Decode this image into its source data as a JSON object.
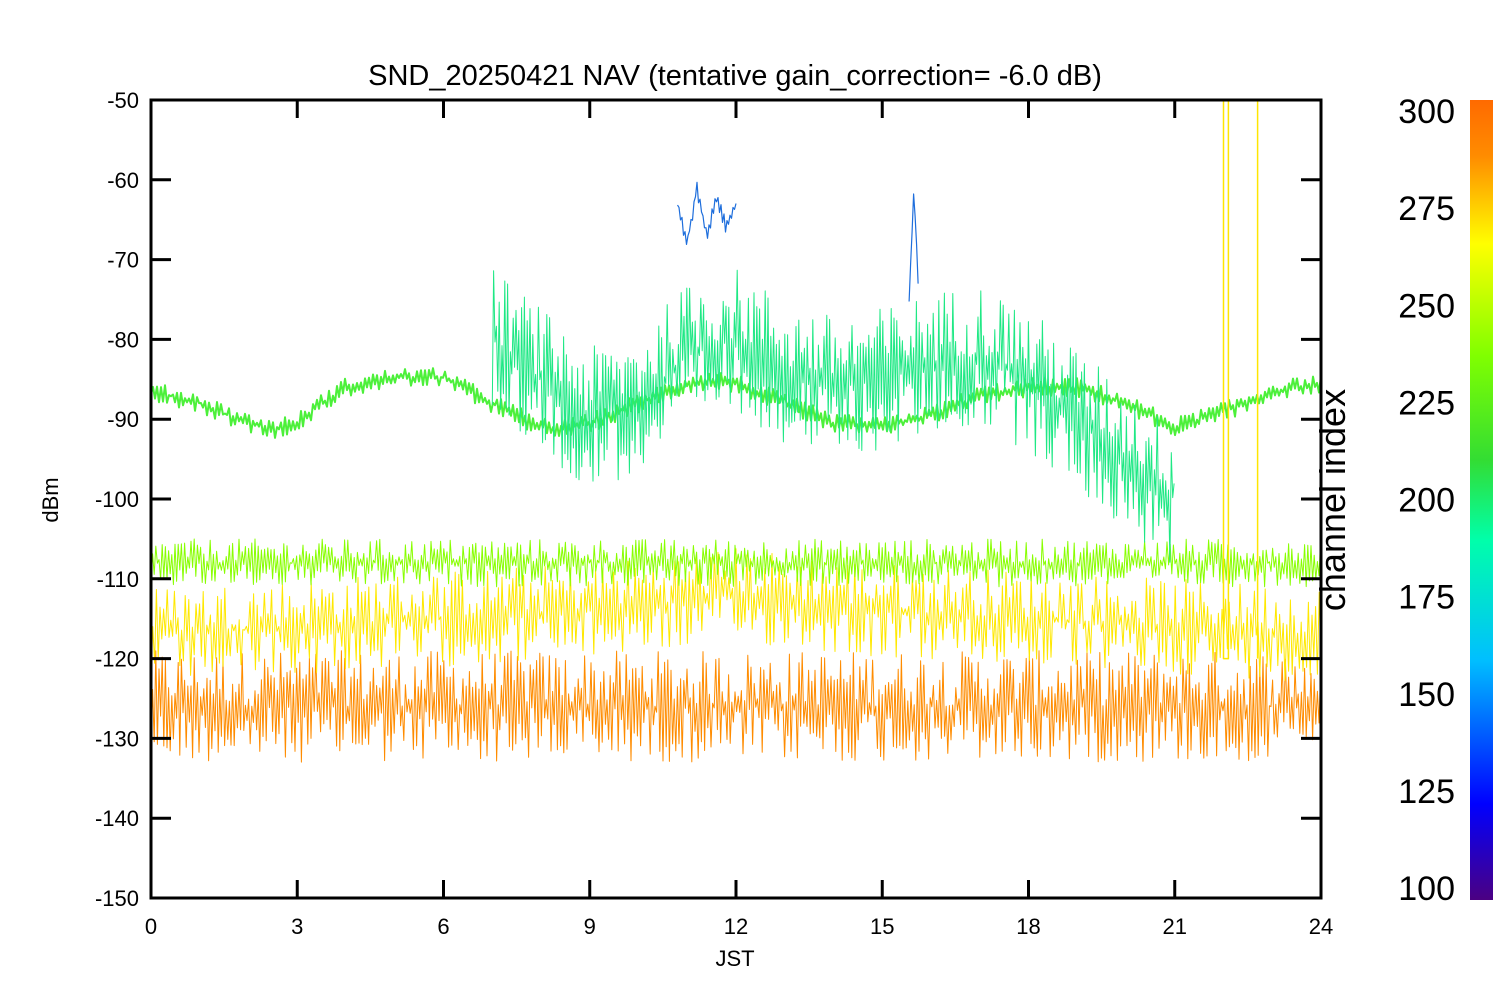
{
  "chart_data": {
    "type": "line",
    "title": "SND_20250421 NAV (tentative gain_correction= -6.0 dB)",
    "xlabel": "JST",
    "ylabel": "dBm",
    "xlim": [
      0,
      24
    ],
    "ylim": [
      -150,
      -50
    ],
    "x_ticks": [
      "0",
      "3",
      "6",
      "9",
      "12",
      "15",
      "18",
      "21",
      "24"
    ],
    "y_ticks": [
      "-50",
      "-60",
      "-70",
      "-80",
      "-90",
      "-100",
      "-110",
      "-120",
      "-130",
      "-140",
      "-150"
    ],
    "grid": false,
    "colorbar": {
      "label": "channel index",
      "range": [
        100,
        300
      ],
      "ticks": [
        "300",
        "275",
        "250",
        "225",
        "200",
        "175",
        "150",
        "125",
        "100"
      ],
      "colormap": [
        "#4b0082",
        "#0000ff",
        "#00bfff",
        "#00ffaa",
        "#33dd33",
        "#80ff00",
        "#ffff00",
        "#ff8c00",
        "#ff6a00"
      ]
    },
    "series": [
      {
        "channel": 290,
        "color": "#ff8c00",
        "x": [
          0,
          3,
          6,
          9,
          12,
          15,
          18,
          21,
          24
        ],
        "y": [
          -126,
          -126,
          -126,
          -126,
          -126,
          -126,
          -126,
          -126,
          -126
        ]
      },
      {
        "channel": 270,
        "color": "#ffe800",
        "x": [
          0,
          3,
          6,
          9,
          12,
          15,
          18,
          21,
          24
        ],
        "y": [
          -117,
          -116,
          -115,
          -114,
          -112,
          -114,
          -115,
          -116,
          -117
        ]
      },
      {
        "channel": 245,
        "color": "#88ff00",
        "x": [
          0,
          3,
          6,
          9,
          12,
          15,
          18,
          21,
          24
        ],
        "y": [
          -108,
          -108,
          -108,
          -108,
          -108,
          -108,
          -108,
          -108,
          -108
        ]
      },
      {
        "channel": 235,
        "color": "#4cf03a",
        "x": [
          0,
          1,
          2,
          2.5,
          3,
          3.5,
          4,
          5,
          6,
          7,
          8,
          8.5,
          9,
          10,
          11,
          11.5,
          12,
          13,
          14,
          15,
          16,
          17,
          18,
          19,
          20,
          21,
          22,
          22.5,
          23,
          24
        ],
        "y": [
          -86.5,
          -88,
          -90.5,
          -91.2,
          -90.5,
          -88,
          -86,
          -84.8,
          -84.8,
          -88,
          -91,
          -91.2,
          -90.5,
          -88,
          -85.5,
          -85,
          -85.5,
          -88,
          -90.5,
          -91,
          -89.5,
          -87,
          -86,
          -86,
          -88,
          -91,
          -89,
          -88,
          -86.5,
          -85.5
        ]
      },
      {
        "channel": 205,
        "color": "#1ee884",
        "x": [
          7,
          8,
          9,
          10,
          11,
          12,
          13,
          14,
          15,
          16,
          17,
          18,
          19,
          20,
          21
        ],
        "y": [
          -80,
          -85,
          -90,
          -88,
          -82,
          -80,
          -84,
          -86,
          -85,
          -83,
          -82,
          -85,
          -90,
          -95,
          -100
        ]
      },
      {
        "channel": 150,
        "color": "#1e6edc",
        "x": [
          10.8,
          11.0,
          11.2,
          11.4,
          11.6,
          11.8,
          12.0
        ],
        "y": [
          -63,
          -68,
          -61,
          -67,
          -62,
          -66,
          -63
        ]
      },
      {
        "channel": 150,
        "color": "#1e6edc",
        "x": [
          15.55,
          15.65,
          15.75
        ],
        "y": [
          -75,
          -61,
          -75
        ]
      },
      {
        "channel": 285,
        "color": "#ffe600",
        "x": [
          22.0,
          22.0,
          22.1,
          22.1,
          22.7,
          22.7
        ],
        "y": [
          -50,
          -120,
          -120,
          -50,
          -50,
          -120
        ]
      }
    ]
  }
}
